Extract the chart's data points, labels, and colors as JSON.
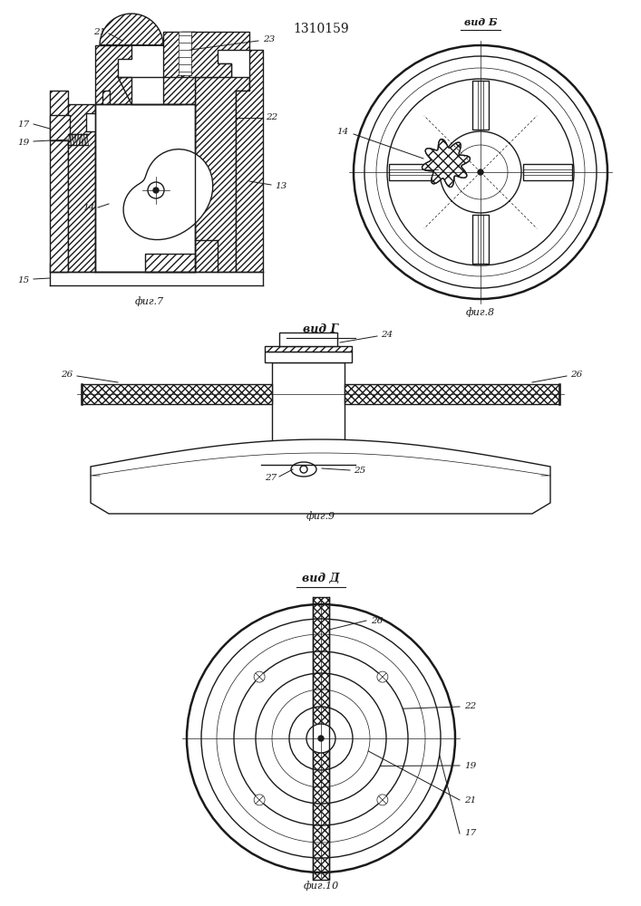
{
  "title": "1310159",
  "bg_color": "#ffffff",
  "line_color": "#1a1a1a",
  "fig_labels": {
    "fig7": "фиг.7",
    "fig8": "вид Б",
    "fig8_cap": "фиг.8",
    "fig9": "фиг.9",
    "fig_g": "вид Г",
    "fig10": "фиг.10",
    "fig_d": "вид Д"
  }
}
